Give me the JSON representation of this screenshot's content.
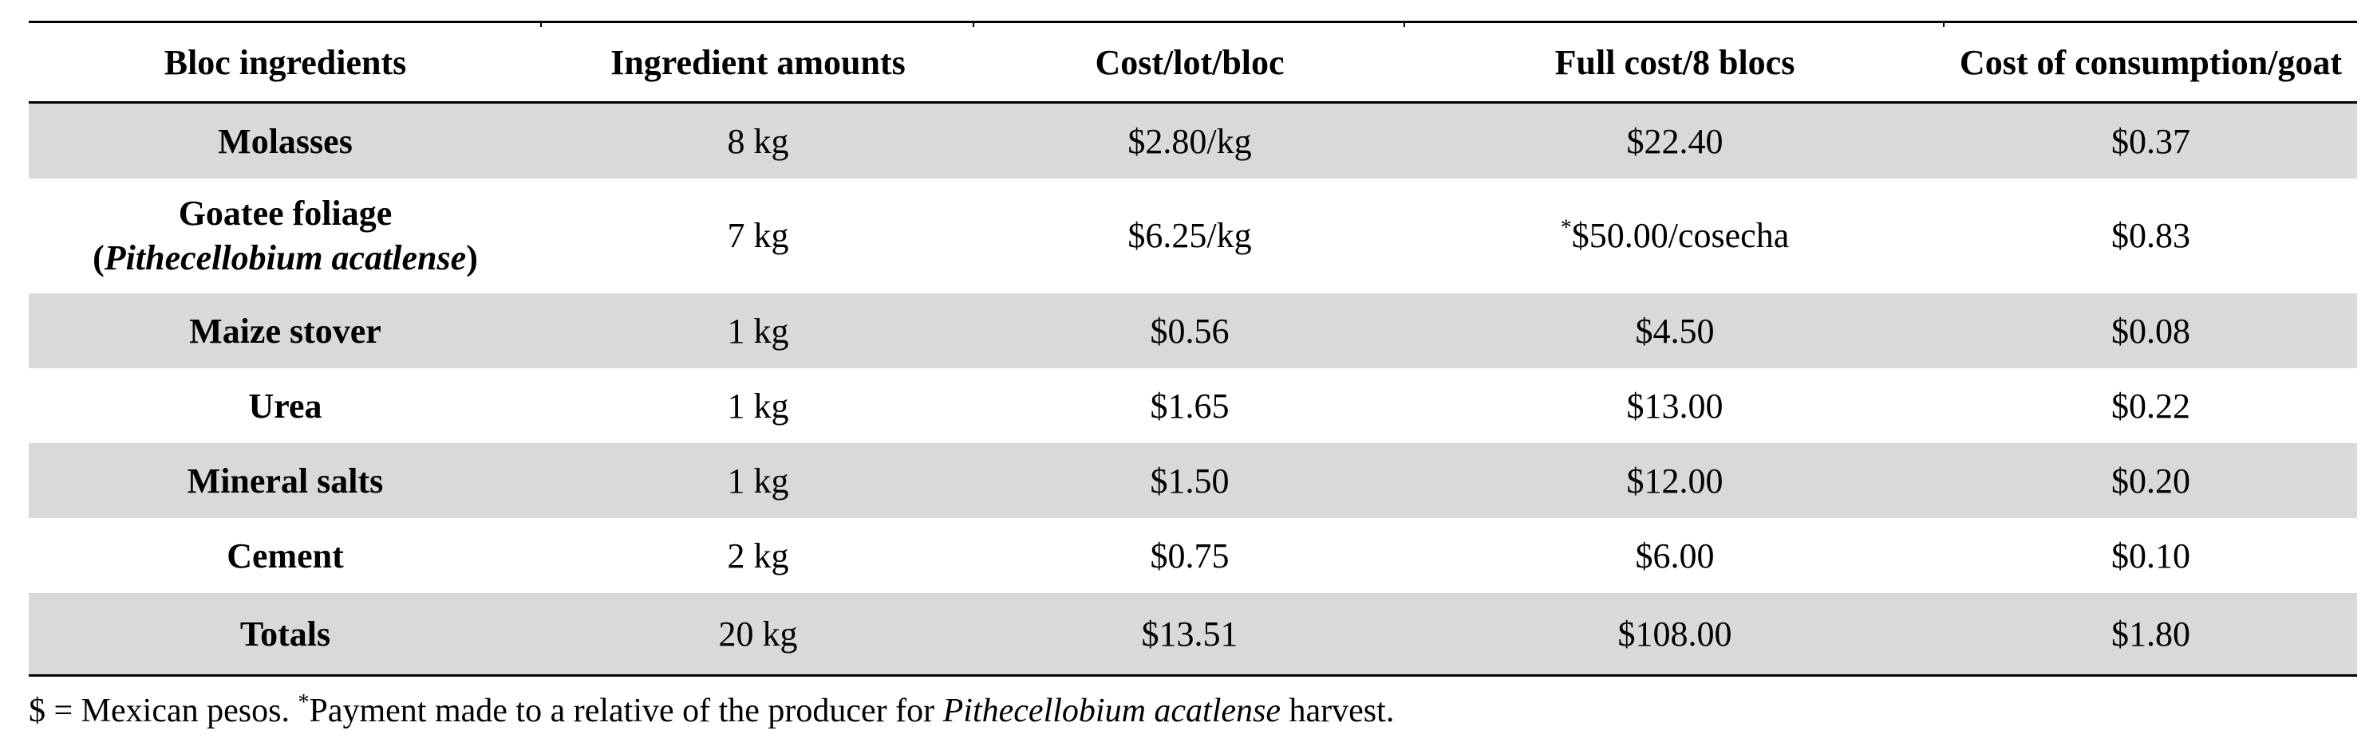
{
  "table": {
    "headers": [
      "Bloc ingredients",
      "Ingredient amounts",
      "Cost/lot/bloc",
      "Full cost/8 blocs",
      "Cost of consumption/goat"
    ],
    "rows": [
      {
        "ingredient": "Molasses",
        "amount": "8 kg",
        "cost_lot_bloc": "$2.80/kg",
        "full_cost_8_blocs": "$22.40",
        "cost_per_goat": "$0.37"
      },
      {
        "ingredient": "Goatee foliage",
        "ingredient_scientific_open": "(",
        "ingredient_scientific": "Pithecellobium acatlense",
        "ingredient_scientific_close": ")",
        "amount": "7 kg",
        "cost_lot_bloc": "$6.25/kg",
        "full_cost_marker": "*",
        "full_cost_8_blocs": "$50.00/cosecha",
        "cost_per_goat": "$0.83"
      },
      {
        "ingredient": "Maize stover",
        "amount": "1 kg",
        "cost_lot_bloc": "$0.56",
        "full_cost_8_blocs": "$4.50",
        "cost_per_goat": "$0.08"
      },
      {
        "ingredient": "Urea",
        "amount": "1 kg",
        "cost_lot_bloc": "$1.65",
        "full_cost_8_blocs": "$13.00",
        "cost_per_goat": "$0.22"
      },
      {
        "ingredient": "Mineral salts",
        "amount": "1 kg",
        "cost_lot_bloc": "$1.50",
        "full_cost_8_blocs": "$12.00",
        "cost_per_goat": "$0.20"
      },
      {
        "ingredient": "Cement",
        "amount": "2 kg",
        "cost_lot_bloc": "$0.75",
        "full_cost_8_blocs": "$6.00",
        "cost_per_goat": "$0.10"
      },
      {
        "ingredient": "Totals",
        "amount": "20 kg",
        "cost_lot_bloc": "$13.51",
        "full_cost_8_blocs": "$108.00",
        "cost_per_goat": "$1.80"
      }
    ]
  },
  "footnote": {
    "currency": "$ = Mexican pesos. ",
    "marker": "*",
    "text_before": "Payment made to a relative of the producer for ",
    "species": "Pithecellobium acatlense",
    "text_after": " harvest."
  },
  "colors": {
    "shaded_row": "#d9d9d9",
    "rule": "#000000"
  }
}
